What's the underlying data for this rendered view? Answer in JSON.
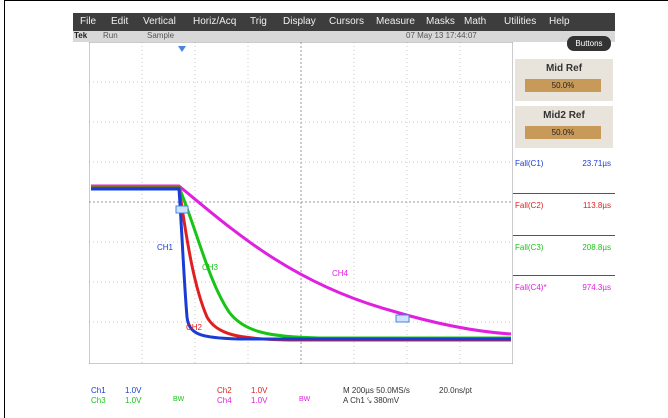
{
  "menu": [
    "File",
    "Edit",
    "Vertical",
    "Horiz/Acq",
    "Trig",
    "Display",
    "Cursors",
    "Measure",
    "Masks",
    "Math",
    "Utilities",
    "Help"
  ],
  "status": {
    "brand": "Tek",
    "run": "Run",
    "sample": "Sample",
    "datetime": "07 May 13 17:44:07"
  },
  "buttons_label": "Buttons",
  "mid_ref": {
    "title": "Mid Ref",
    "value": "50.0%"
  },
  "mid2_ref": {
    "title": "Mid2 Ref",
    "value": "50.0%"
  },
  "measurements": [
    {
      "label": "Fall(C1)",
      "value": "23.71µs",
      "color": "#1a3cd6"
    },
    {
      "label": "Fall(C2)",
      "value": "113.8µs",
      "color": "#e02020"
    },
    {
      "label": "Fall(C3)",
      "value": "208.8µs",
      "color": "#17c417"
    },
    {
      "label": "Fall(C4)*",
      "value": "974.3µs",
      "color": "#e020e0"
    }
  ],
  "channel_labels": {
    "ch1": "CH1",
    "ch2": "CH2",
    "ch3": "CH3",
    "ch4": "CH4"
  },
  "bottom": {
    "ch1": "Ch1",
    "ch1_scale": "1.0V",
    "ch2": "Ch2",
    "ch2_scale": "1.0V",
    "ch3": "Ch3",
    "ch3_scale": "1.0V",
    "ch4": "Ch4",
    "ch4_scale": "1.0V",
    "bw1": "BW",
    "bw2": "BW",
    "timebase": "M 200µs 50.0MS/s",
    "res": "20.0ns/pt",
    "trigger": "A  Ch1  ⤥  380mV"
  },
  "colors": {
    "ch1": "#1a3cd6",
    "ch2": "#e02020",
    "ch3": "#17c417",
    "ch4": "#e020e0"
  }
}
